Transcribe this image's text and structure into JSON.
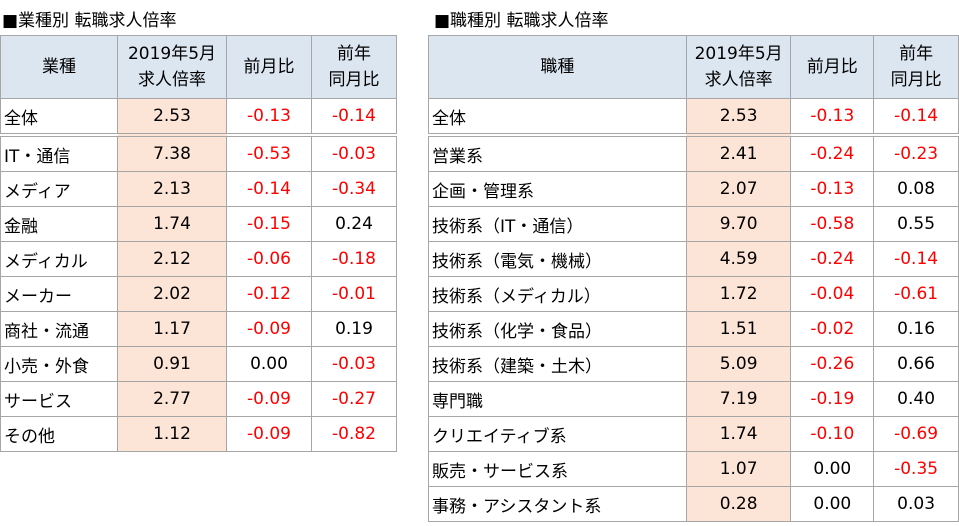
{
  "left": {
    "title": "■業種別 転職求人倍率",
    "header": [
      [
        "業種"
      ],
      [
        "2019年5月",
        "求人倍率"
      ],
      [
        "前月比"
      ],
      [
        "前年",
        "同月比"
      ]
    ],
    "rows": [
      [
        "全体",
        "2.53",
        "-0.13",
        "-0.14"
      ],
      [
        "IT・通信",
        "7.38",
        "-0.53",
        "-0.03"
      ],
      [
        "メディア",
        "2.13",
        "-0.14",
        "-0.34"
      ],
      [
        "金融",
        "1.74",
        "-0.15",
        "0.24"
      ],
      [
        "メディカル",
        "2.12",
        "-0.06",
        "-0.18"
      ],
      [
        "メーカー",
        "2.02",
        "-0.12",
        "-0.01"
      ],
      [
        "商社・流通",
        "1.17",
        "-0.09",
        "0.19"
      ],
      [
        "小売・外食",
        "0.91",
        "0.00",
        "-0.03"
      ],
      [
        "サービス",
        "2.77",
        "-0.09",
        "-0.27"
      ],
      [
        "その他",
        "1.12",
        "-0.09",
        "-0.82"
      ]
    ]
  },
  "right": {
    "title": "■職種別 転職求人倍率",
    "header": [
      [
        "職種"
      ],
      [
        "2019年5月",
        "求人倍率"
      ],
      [
        "前月比"
      ],
      [
        "前年",
        "同月比"
      ]
    ],
    "rows": [
      [
        "全体",
        "2.53",
        "-0.13",
        "-0.14"
      ],
      [
        "営業系",
        "2.41",
        "-0.24",
        "-0.23"
      ],
      [
        "企画・管理系",
        "2.07",
        "-0.13",
        "0.08"
      ],
      [
        "技術系（IT・通信）",
        "9.70",
        "-0.58",
        "0.55"
      ],
      [
        "技術系（電気・機械）",
        "4.59",
        "-0.24",
        "-0.14"
      ],
      [
        "技術系（メディカル）",
        "1.72",
        "-0.04",
        "-0.61"
      ],
      [
        "技術系（化学・食品）",
        "1.51",
        "-0.02",
        "0.16"
      ],
      [
        "技術系（建築・土木）",
        "5.09",
        "-0.26",
        "0.66"
      ],
      [
        "専門職",
        "7.19",
        "-0.19",
        "0.40"
      ],
      [
        "クリエイティブ系",
        "1.74",
        "-0.10",
        "-0.69"
      ],
      [
        "販売・サービス系",
        "1.07",
        "0.00",
        "-0.35"
      ],
      [
        "事務・アシスタント系",
        "0.28",
        "0.00",
        "0.03"
      ]
    ]
  }
}
